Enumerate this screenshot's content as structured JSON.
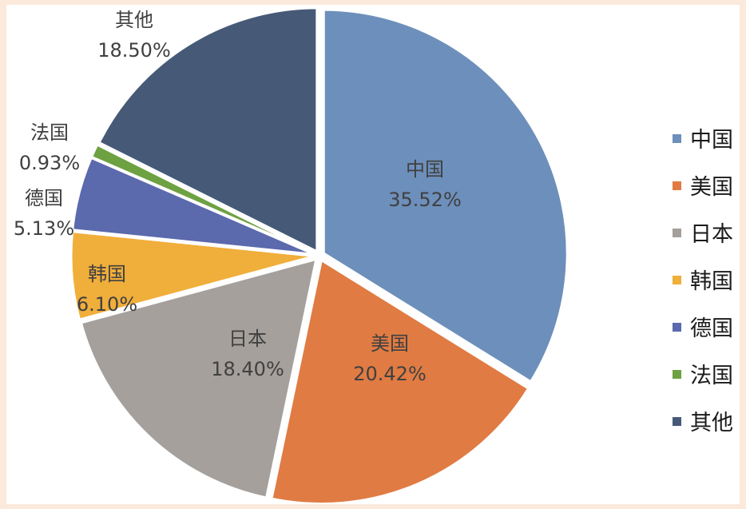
{
  "chart_data": {
    "type": "pie",
    "categories": [
      "中国",
      "美国",
      "日本",
      "韩国",
      "德国",
      "法国",
      "其他"
    ],
    "values": [
      35.52,
      20.42,
      18.4,
      6.1,
      5.13,
      0.93,
      18.5
    ],
    "value_labels": [
      "35.52%",
      "20.42%",
      "18.40%",
      "6.10%",
      "5.13%",
      "0.93%",
      "18.50%"
    ],
    "colors": [
      "#6d8fbb",
      "#e07b43",
      "#a5a09c",
      "#f0ae3b",
      "#5b69ad",
      "#6da142",
      "#465a77"
    ],
    "legend_position": "right",
    "start_angle": "12 o'clock",
    "direction": "clockwise",
    "exploded": true
  }
}
